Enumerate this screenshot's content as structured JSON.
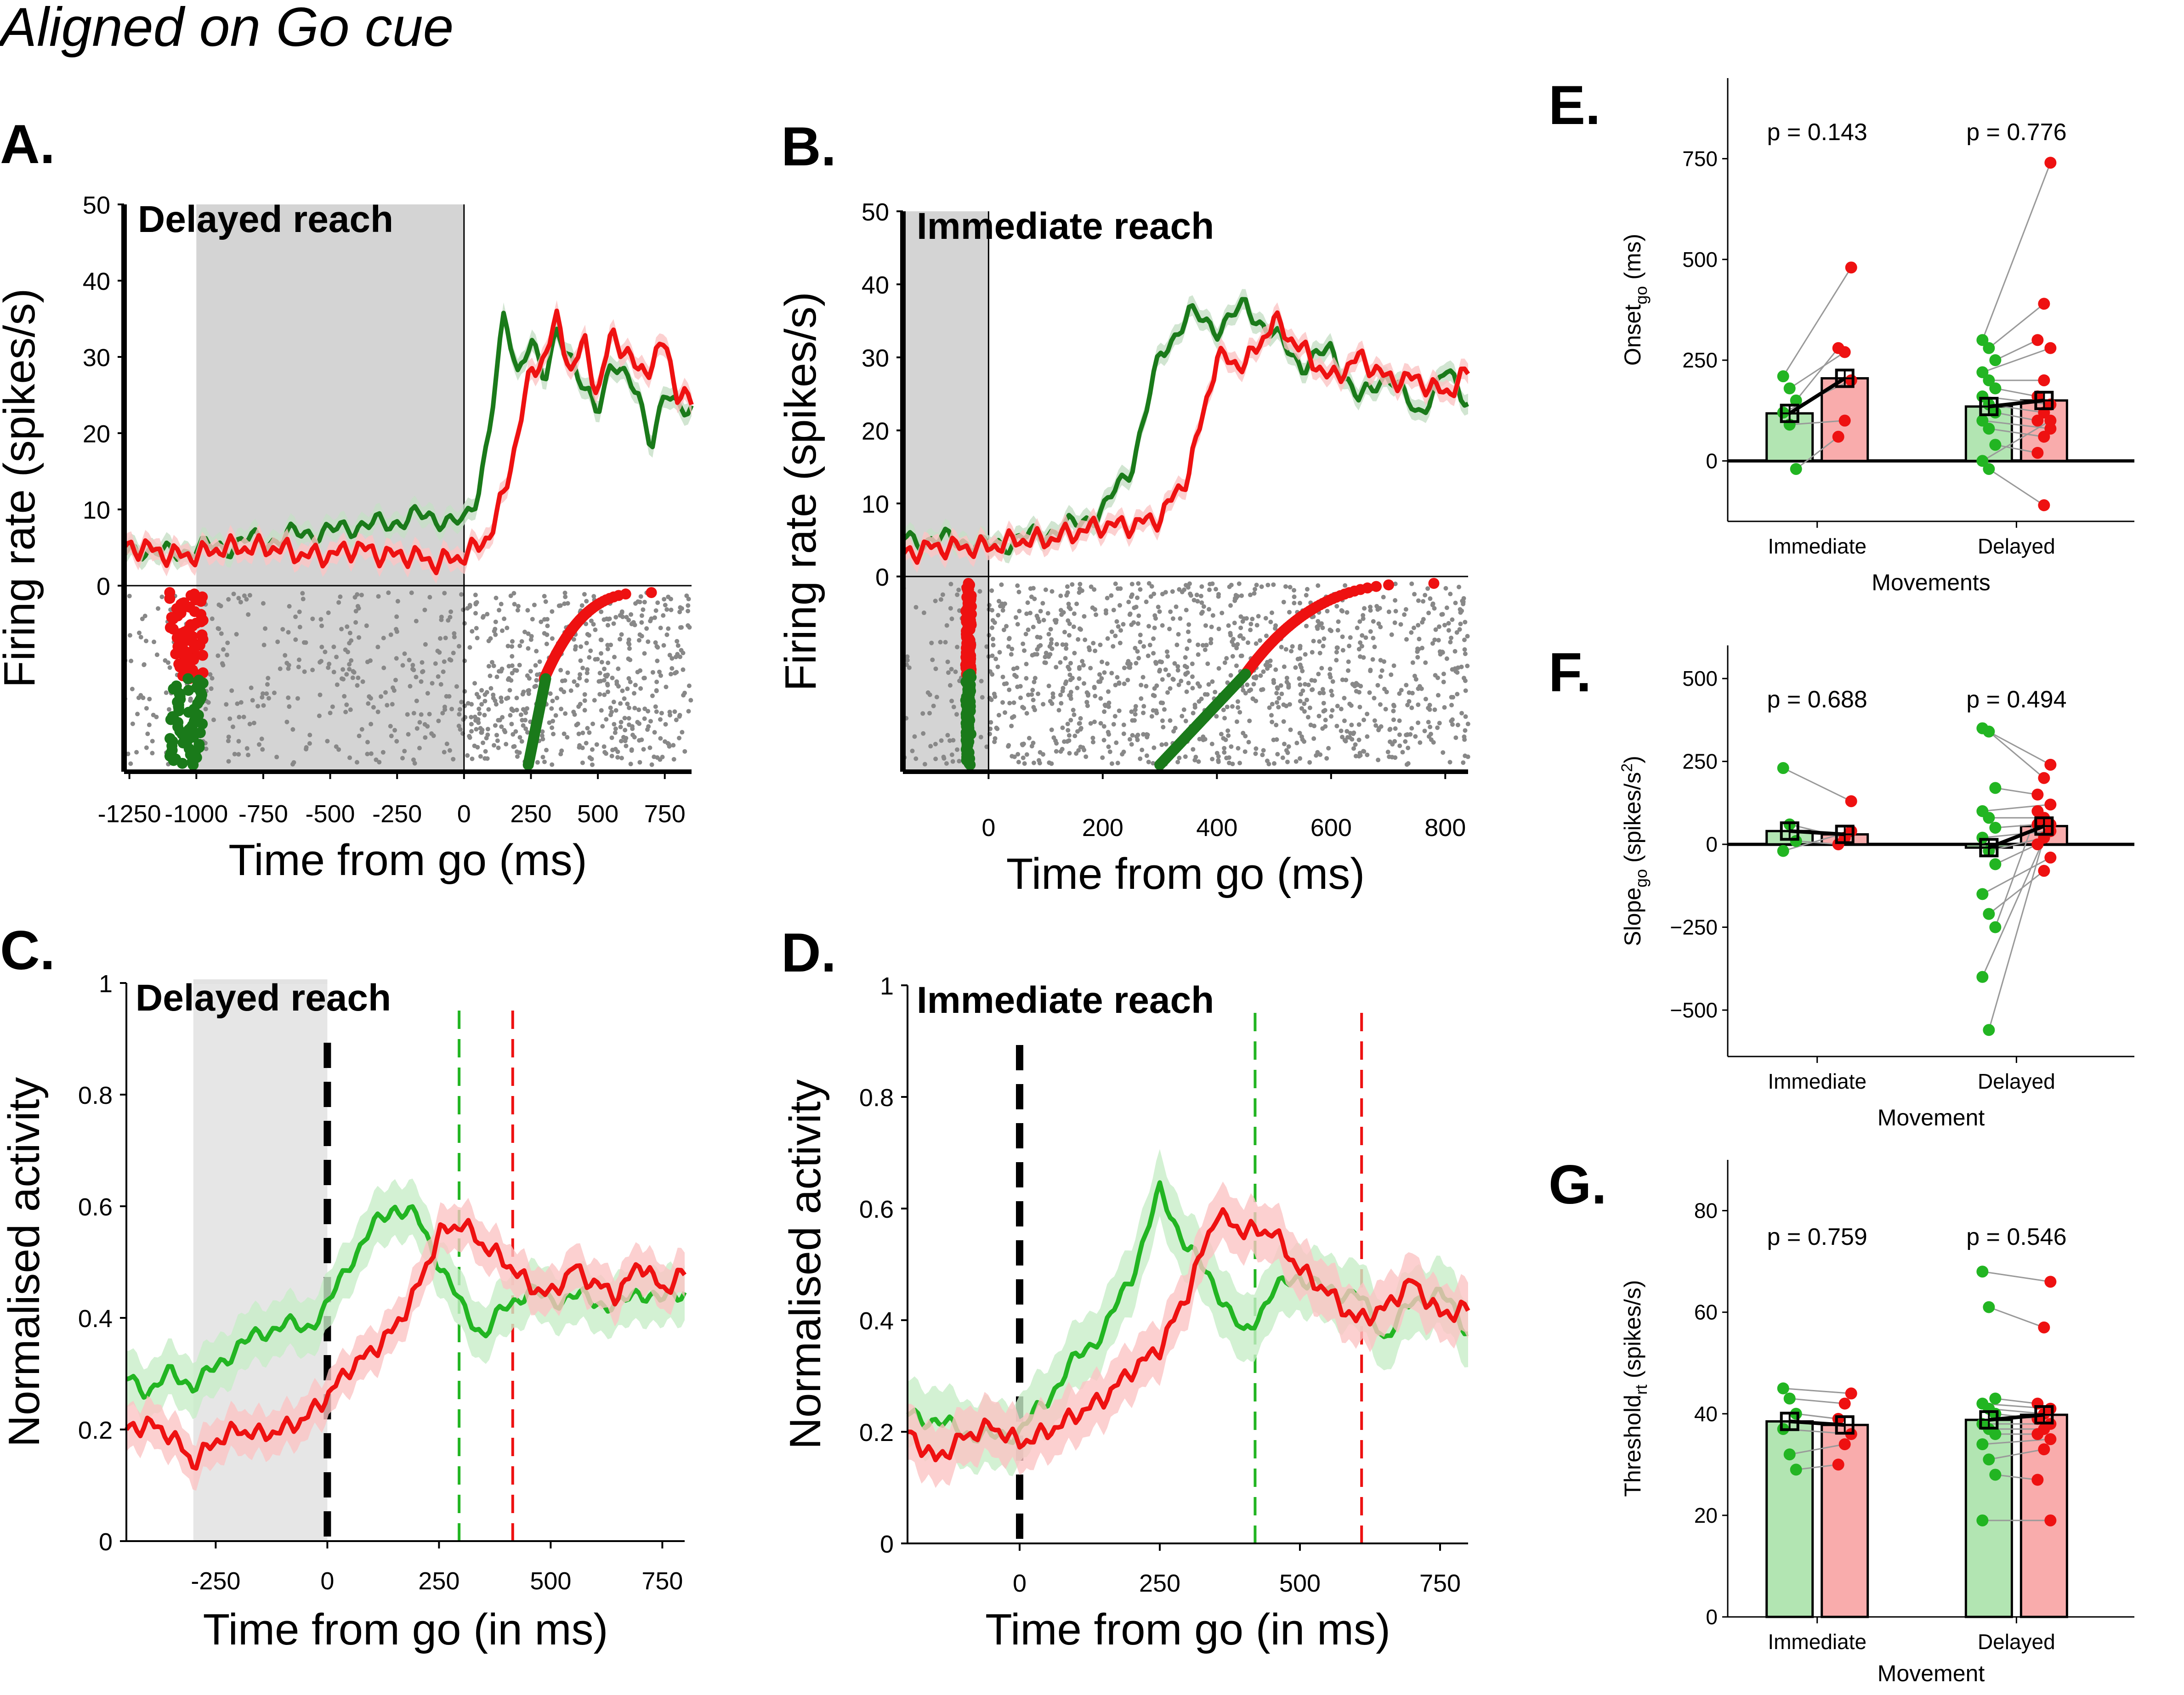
{
  "figure": {
    "supertitle": "Aligned on Go cue"
  },
  "colors": {
    "green_dark": "#1a7a1a",
    "green": "#22b522",
    "red": "#ee1111",
    "grey_shade": "#d4d4d4",
    "raster": "#888888"
  },
  "chart_data": [
    {
      "panel": "A.",
      "type": "line",
      "title": "Delayed reach",
      "xlabel": "Time from go (ms)",
      "ylabel": "Firing rate (spikes/s)",
      "xlim": [
        -1270,
        850
      ],
      "ylim": [
        0,
        50
      ],
      "xticks": [
        -1250,
        -1000,
        -750,
        -500,
        -250,
        0,
        250,
        500,
        750
      ],
      "xtick_labels": [
        "-1250",
        "-1000",
        "-750",
        "-500",
        "-250",
        "0",
        "250",
        "500",
        "750"
      ],
      "yticks": [
        0,
        10,
        20,
        30,
        40,
        50
      ],
      "shaded_interval": [
        -1000,
        0
      ],
      "series": [
        {
          "color": "green_dark",
          "x": [
            -1270,
            -1200,
            -1100,
            -1000,
            -900,
            -800,
            -700,
            -600,
            -500,
            -400,
            -300,
            -200,
            -100,
            0,
            50,
            100,
            150,
            200,
            250,
            300,
            350,
            400,
            450,
            500,
            550,
            600,
            650,
            700,
            750,
            800,
            850
          ],
          "y": [
            4,
            5,
            4,
            5,
            5,
            6,
            6,
            7,
            7,
            8,
            8,
            9,
            9,
            8,
            12,
            22,
            35,
            28,
            33,
            26,
            34,
            30,
            25,
            23,
            30,
            27,
            25,
            19,
            25,
            23,
            24
          ]
        },
        {
          "color": "red",
          "x": [
            -1270,
            -1200,
            -1100,
            -1000,
            -900,
            -800,
            -700,
            -600,
            -500,
            -400,
            -300,
            -200,
            -100,
            0,
            50,
            100,
            150,
            200,
            250,
            300,
            350,
            400,
            450,
            500,
            550,
            600,
            650,
            700,
            750,
            800,
            850
          ],
          "y": [
            5,
            5,
            4,
            4,
            5,
            5,
            5,
            4,
            4,
            5,
            4,
            4,
            3,
            4,
            5,
            7,
            12,
            20,
            28,
            30,
            35,
            28,
            32,
            25,
            33,
            31,
            28,
            29,
            32,
            25,
            24
          ]
        }
      ],
      "raster": {
        "markers": [
          {
            "color": "red",
            "x_range": [
              -1100,
              -975
            ],
            "rows": "upper"
          },
          {
            "color": "green_dark",
            "x_range": [
              -1100,
              -975
            ],
            "rows": "lower"
          },
          {
            "color": "red",
            "x_start": 300,
            "x_end": 700,
            "rows": "upper"
          },
          {
            "color": "green_dark",
            "x_start": 240,
            "x_end": 305,
            "rows": "lower"
          }
        ]
      }
    },
    {
      "panel": "B.",
      "type": "line",
      "title": "Immediate reach",
      "xlabel": "Time from go (ms)",
      "ylabel": "Firing rate (spikes/s)",
      "xlim": [
        -150,
        840
      ],
      "ylim": [
        0,
        50
      ],
      "xticks": [
        0,
        200,
        400,
        600,
        800
      ],
      "xtick_labels": [
        "0",
        "200",
        "400",
        "600",
        "800"
      ],
      "yticks": [
        0,
        10,
        20,
        30,
        40,
        50
      ],
      "shaded_interval": [
        -150,
        0
      ],
      "series": [
        {
          "color": "green_dark",
          "x": [
            -150,
            -100,
            -50,
            0,
            50,
            100,
            150,
            200,
            250,
            300,
            350,
            400,
            450,
            500,
            550,
            600,
            650,
            700,
            750,
            800,
            840
          ],
          "y": [
            5,
            5,
            5,
            4,
            5,
            6,
            7,
            9,
            15,
            30,
            36,
            34,
            37,
            33,
            29,
            31,
            24,
            28,
            22,
            28,
            24
          ]
        },
        {
          "color": "red",
          "x": [
            -150,
            -100,
            -50,
            0,
            50,
            100,
            150,
            200,
            250,
            300,
            350,
            400,
            450,
            500,
            550,
            600,
            650,
            700,
            750,
            800,
            840
          ],
          "y": [
            3,
            4,
            4,
            4,
            5,
            5,
            6,
            7,
            7,
            8,
            14,
            30,
            29,
            35,
            31,
            27,
            30,
            27,
            27,
            25,
            28
          ]
        }
      ],
      "raster": {
        "markers": [
          {
            "color": "red",
            "x_range": [
              -40,
              -30
            ],
            "rows": "upper"
          },
          {
            "color": "green_dark",
            "x_range": [
              -40,
              -30
            ],
            "rows": "lower"
          },
          {
            "color": "red",
            "x_start": 450,
            "x_end": 780,
            "rows": "upper"
          },
          {
            "color": "green_dark",
            "x_start": 300,
            "x_end": 450,
            "rows": "lower"
          }
        ]
      }
    },
    {
      "panel": "C.",
      "type": "line",
      "title": "Delayed reach",
      "xlabel": "Time from go (in ms)",
      "ylabel": "Normalised activity",
      "xlim": [
        -450,
        800
      ],
      "ylim": [
        0,
        1
      ],
      "xticks": [
        -250,
        0,
        250,
        500,
        750
      ],
      "xtick_labels": [
        "-250",
        "0",
        "250",
        "500",
        "750"
      ],
      "yticks": [
        0,
        0.2,
        0.4,
        0.6,
        0.8,
        1
      ],
      "ytick_labels": [
        "0",
        "0.2",
        "0.4",
        "0.6",
        "0.8",
        "1"
      ],
      "shaded_interval": [
        -300,
        0
      ],
      "vlines": [
        {
          "x": 0,
          "color": "black"
        },
        {
          "x": 295,
          "color": "green"
        },
        {
          "x": 415,
          "color": "red"
        }
      ],
      "series": [
        {
          "color": "green",
          "x": [
            -450,
            -400,
            -350,
            -300,
            -250,
            -200,
            -150,
            -100,
            -50,
            0,
            50,
            100,
            150,
            200,
            250,
            300,
            350,
            400,
            450,
            500,
            550,
            600,
            650,
            700,
            750,
            800
          ],
          "y": [
            0.29,
            0.27,
            0.3,
            0.28,
            0.31,
            0.35,
            0.37,
            0.39,
            0.38,
            0.42,
            0.5,
            0.56,
            0.6,
            0.58,
            0.5,
            0.42,
            0.37,
            0.42,
            0.45,
            0.43,
            0.44,
            0.43,
            0.42,
            0.45,
            0.43,
            0.45
          ],
          "band": 0.05
        },
        {
          "color": "red",
          "x": [
            -450,
            -400,
            -350,
            -300,
            -250,
            -200,
            -150,
            -100,
            -50,
            0,
            50,
            100,
            150,
            200,
            250,
            300,
            350,
            400,
            450,
            500,
            550,
            600,
            650,
            700,
            750,
            800
          ],
          "y": [
            0.2,
            0.21,
            0.19,
            0.14,
            0.18,
            0.2,
            0.19,
            0.2,
            0.22,
            0.26,
            0.31,
            0.34,
            0.38,
            0.45,
            0.55,
            0.57,
            0.53,
            0.5,
            0.46,
            0.44,
            0.49,
            0.46,
            0.44,
            0.5,
            0.45,
            0.48
          ],
          "band": 0.04
        }
      ]
    },
    {
      "panel": "D.",
      "type": "line",
      "title": "Immediate reach",
      "xlabel": "Time from go (in ms)",
      "ylabel": "Normalised activity",
      "xlim": [
        -200,
        800
      ],
      "ylim": [
        0,
        1
      ],
      "xticks": [
        0,
        250,
        500,
        750
      ],
      "xtick_labels": [
        "0",
        "250",
        "500",
        "750"
      ],
      "yticks": [
        0,
        0.2,
        0.4,
        0.6,
        0.8,
        1
      ],
      "ytick_labels": [
        "0",
        "0.2",
        "0.4",
        "0.6",
        "0.8",
        "1"
      ],
      "vlines": [
        {
          "x": 0,
          "color": "black"
        },
        {
          "x": 420,
          "color": "green"
        },
        {
          "x": 610,
          "color": "red"
        }
      ],
      "series": [
        {
          "color": "green",
          "x": [
            -200,
            -150,
            -100,
            -50,
            0,
            50,
            100,
            150,
            200,
            250,
            300,
            350,
            400,
            450,
            500,
            550,
            600,
            650,
            700,
            750,
            800
          ],
          "y": [
            0.23,
            0.22,
            0.2,
            0.19,
            0.2,
            0.26,
            0.33,
            0.38,
            0.48,
            0.63,
            0.53,
            0.46,
            0.37,
            0.45,
            0.48,
            0.45,
            0.45,
            0.37,
            0.43,
            0.45,
            0.38
          ],
          "band": 0.06
        },
        {
          "color": "red",
          "x": [
            -200,
            -150,
            -100,
            -50,
            0,
            50,
            100,
            150,
            200,
            250,
            300,
            350,
            400,
            450,
            500,
            550,
            600,
            650,
            700,
            750,
            800
          ],
          "y": [
            0.2,
            0.15,
            0.19,
            0.21,
            0.18,
            0.2,
            0.23,
            0.26,
            0.31,
            0.35,
            0.45,
            0.59,
            0.56,
            0.56,
            0.49,
            0.45,
            0.4,
            0.42,
            0.47,
            0.41,
            0.42
          ],
          "band": 0.05
        }
      ]
    },
    {
      "panel": "E.",
      "type": "bar",
      "xlabel": "Movements",
      "ylabel": "Onset",
      "ylabel_sub": "go",
      "ylabel_unit": " (ms)",
      "ylim": [
        -150,
        950
      ],
      "yticks": [
        0,
        250,
        500,
        750
      ],
      "categories": [
        "Immediate",
        "Delayed"
      ],
      "pvalues": [
        "p = 0.143",
        "p = 0.776"
      ],
      "means": [
        [
          118,
          205
        ],
        [
          135,
          150
        ]
      ],
      "points": [
        [
          [
            210,
            480
          ],
          [
            180,
            270
          ],
          [
            150,
            280
          ],
          [
            120,
            200
          ],
          [
            90,
            100
          ],
          [
            -20,
            60
          ]
        ],
        [
          [
            300,
            740
          ],
          [
            280,
            390
          ],
          [
            250,
            300
          ],
          [
            220,
            280
          ],
          [
            200,
            200
          ],
          [
            180,
            160
          ],
          [
            160,
            140
          ],
          [
            140,
            120
          ],
          [
            120,
            100
          ],
          [
            100,
            80
          ],
          [
            80,
            60
          ],
          [
            40,
            20
          ],
          [
            0,
            100
          ],
          [
            -20,
            -110
          ]
        ]
      ]
    },
    {
      "panel": "F.",
      "type": "bar",
      "xlabel": "Movement",
      "ylabel": "Slope",
      "ylabel_sub": "go",
      "ylabel_unit": " (spikes/s",
      "ylim": [
        -640,
        600
      ],
      "yticks": [
        -500,
        -250,
        0,
        250,
        500
      ],
      "categories": [
        "Immediate",
        "Delayed"
      ],
      "pvalues": [
        "p = 0.688",
        "p = 0.494"
      ],
      "means": [
        [
          40,
          30
        ],
        [
          -10,
          55
        ]
      ],
      "points": [
        [
          [
            230,
            130
          ],
          [
            60,
            20
          ],
          [
            10,
            0
          ],
          [
            -20,
            40
          ]
        ],
        [
          [
            350,
            240
          ],
          [
            340,
            200
          ],
          [
            170,
            150
          ],
          [
            100,
            120
          ],
          [
            80,
            80
          ],
          [
            50,
            60
          ],
          [
            20,
            40
          ],
          [
            -20,
            20
          ],
          [
            -60,
            0
          ],
          [
            -150,
            -40
          ],
          [
            -210,
            -80
          ],
          [
            -250,
            100
          ],
          [
            -400,
            60
          ],
          [
            -560,
            20
          ]
        ]
      ]
    },
    {
      "panel": "G.",
      "type": "bar",
      "xlabel": "Movement",
      "ylabel": "Threshold",
      "ylabel_sub": "rt",
      "ylabel_unit": " (spikes/s)",
      "ylim": [
        0,
        90
      ],
      "yticks": [
        0,
        20,
        40,
        60,
        80
      ],
      "categories": [
        "Immediate",
        "Delayed"
      ],
      "pvalues": [
        "p = 0.759",
        "p = 0.546"
      ],
      "means": [
        [
          38.5,
          37.8
        ],
        [
          38.8,
          39.8
        ]
      ],
      "points": [
        [
          [
            45,
            44
          ],
          [
            43,
            42
          ],
          [
            40,
            39
          ],
          [
            37,
            36
          ],
          [
            32,
            34
          ],
          [
            29,
            30
          ]
        ],
        [
          [
            68,
            66
          ],
          [
            61,
            57
          ],
          [
            43,
            42
          ],
          [
            42,
            41
          ],
          [
            41,
            40
          ],
          [
            40,
            39
          ],
          [
            38,
            38
          ],
          [
            37,
            37
          ],
          [
            36,
            36
          ],
          [
            34,
            35
          ],
          [
            31,
            33
          ],
          [
            28,
            27
          ],
          [
            19,
            19
          ]
        ]
      ]
    }
  ]
}
